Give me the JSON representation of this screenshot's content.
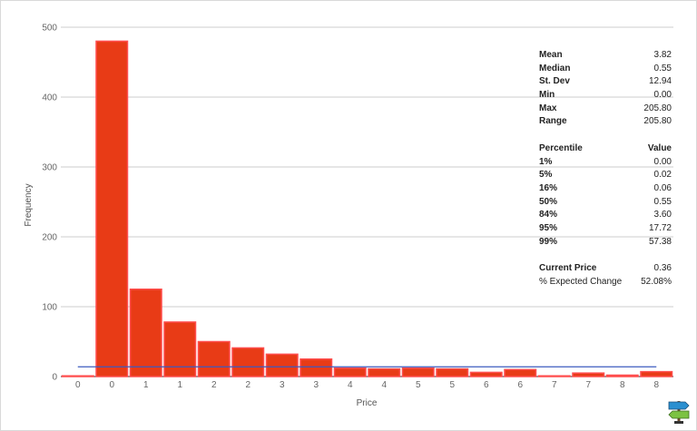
{
  "chart_data": {
    "type": "bar",
    "xlabel": "Price",
    "ylabel": "Frequency",
    "ylim": [
      0,
      500
    ],
    "yticks": [
      0,
      100,
      200,
      300,
      400,
      500
    ],
    "xticks": [
      "0",
      "0",
      "1",
      "1",
      "2",
      "2",
      "3",
      "3",
      "4",
      "4",
      "5",
      "5",
      "6",
      "6",
      "7",
      "7",
      "8",
      "8"
    ],
    "values": [
      1,
      480,
      125,
      78,
      50,
      41,
      32,
      25,
      12,
      11,
      12,
      11,
      6,
      10,
      1,
      5,
      2,
      7
    ],
    "bar_color": "#e83b16",
    "bar_edge_color": "#ff4d4d",
    "trend_line": {
      "color": "#3c5bbf",
      "start_value": 14,
      "end_value": 14
    },
    "grid": true
  },
  "stats": {
    "summary": [
      {
        "label": "Mean",
        "value": "3.82"
      },
      {
        "label": "Median",
        "value": "0.55"
      },
      {
        "label": "St. Dev",
        "value": "12.94"
      },
      {
        "label": "Min",
        "value": "0.00"
      },
      {
        "label": "Max",
        "value": "205.80"
      },
      {
        "label": "Range",
        "value": "205.80"
      }
    ],
    "percentile_header": {
      "label": "Percentile",
      "value": "Value"
    },
    "percentiles": [
      {
        "label": "1%",
        "value": "0.00"
      },
      {
        "label": "5%",
        "value": "0.02"
      },
      {
        "label": "16%",
        "value": "0.06"
      },
      {
        "label": "50%",
        "value": "0.55"
      },
      {
        "label": "84%",
        "value": "3.60"
      },
      {
        "label": "95%",
        "value": "17.72"
      },
      {
        "label": "99%",
        "value": "57.38"
      }
    ],
    "footer": [
      {
        "label": "Current Price",
        "value": "0.36",
        "bold": true
      },
      {
        "label": "% Expected Change",
        "value": "52.08%",
        "bold": false
      }
    ]
  },
  "logo_icon": "signpost-icon"
}
